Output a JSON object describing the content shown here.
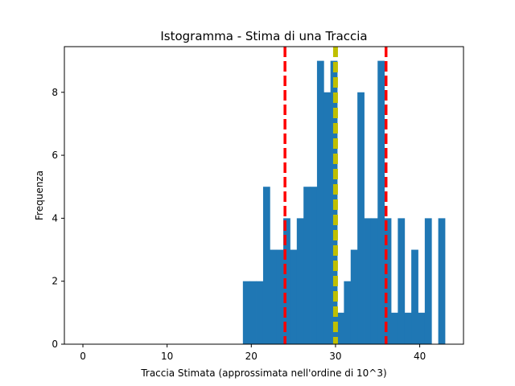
{
  "chart_data": {
    "type": "bar",
    "title": "Istogramma - Stima di una Traccia",
    "xlabel": "Traccia Stimata (approssimata nell'ordine di 10^3)",
    "ylabel": "Frequenza",
    "xlim": [
      -2.2,
      45.2
    ],
    "ylim": [
      0,
      9.45
    ],
    "xticks": [
      0,
      10,
      20,
      30,
      40
    ],
    "yticks": [
      0,
      2,
      4,
      6,
      8
    ],
    "grid": false,
    "bar_color": "#1f77b4",
    "bins": [
      {
        "start": 19.0,
        "end": 19.8,
        "count": 2
      },
      {
        "start": 19.8,
        "end": 20.6,
        "count": 2
      },
      {
        "start": 20.6,
        "end": 21.4,
        "count": 2
      },
      {
        "start": 21.4,
        "end": 22.2,
        "count": 5
      },
      {
        "start": 22.2,
        "end": 23.0,
        "count": 3
      },
      {
        "start": 23.0,
        "end": 23.8,
        "count": 3
      },
      {
        "start": 23.8,
        "end": 24.6,
        "count": 4
      },
      {
        "start": 24.6,
        "end": 25.4,
        "count": 3
      },
      {
        "start": 25.4,
        "end": 26.2,
        "count": 4
      },
      {
        "start": 26.2,
        "end": 27.0,
        "count": 5
      },
      {
        "start": 27.0,
        "end": 27.8,
        "count": 5
      },
      {
        "start": 27.8,
        "end": 28.6,
        "count": 9
      },
      {
        "start": 28.6,
        "end": 29.4,
        "count": 8
      },
      {
        "start": 29.4,
        "end": 30.2,
        "count": 9
      },
      {
        "start": 30.2,
        "end": 31.0,
        "count": 1
      },
      {
        "start": 31.0,
        "end": 31.8,
        "count": 2
      },
      {
        "start": 31.8,
        "end": 32.6,
        "count": 3
      },
      {
        "start": 32.6,
        "end": 33.4,
        "count": 8
      },
      {
        "start": 33.4,
        "end": 34.2,
        "count": 4
      },
      {
        "start": 34.2,
        "end": 35.0,
        "count": 4
      },
      {
        "start": 35.0,
        "end": 35.8,
        "count": 9
      },
      {
        "start": 35.8,
        "end": 36.6,
        "count": 4
      },
      {
        "start": 36.6,
        "end": 37.4,
        "count": 1
      },
      {
        "start": 37.4,
        "end": 38.2,
        "count": 4
      },
      {
        "start": 38.2,
        "end": 39.0,
        "count": 1
      },
      {
        "start": 39.0,
        "end": 39.8,
        "count": 3
      },
      {
        "start": 39.8,
        "end": 40.6,
        "count": 1
      },
      {
        "start": 40.6,
        "end": 41.4,
        "count": 4
      },
      {
        "start": 41.4,
        "end": 42.2,
        "count": 0
      },
      {
        "start": 42.2,
        "end": 43.0,
        "count": 4
      }
    ],
    "reference_lines": [
      {
        "x": 24,
        "color": "#ff0000",
        "style": "dashed"
      },
      {
        "x": 30,
        "color": "#bfbf00",
        "style": "dashed"
      },
      {
        "x": 36,
        "color": "#ff0000",
        "style": "dashed"
      }
    ]
  }
}
